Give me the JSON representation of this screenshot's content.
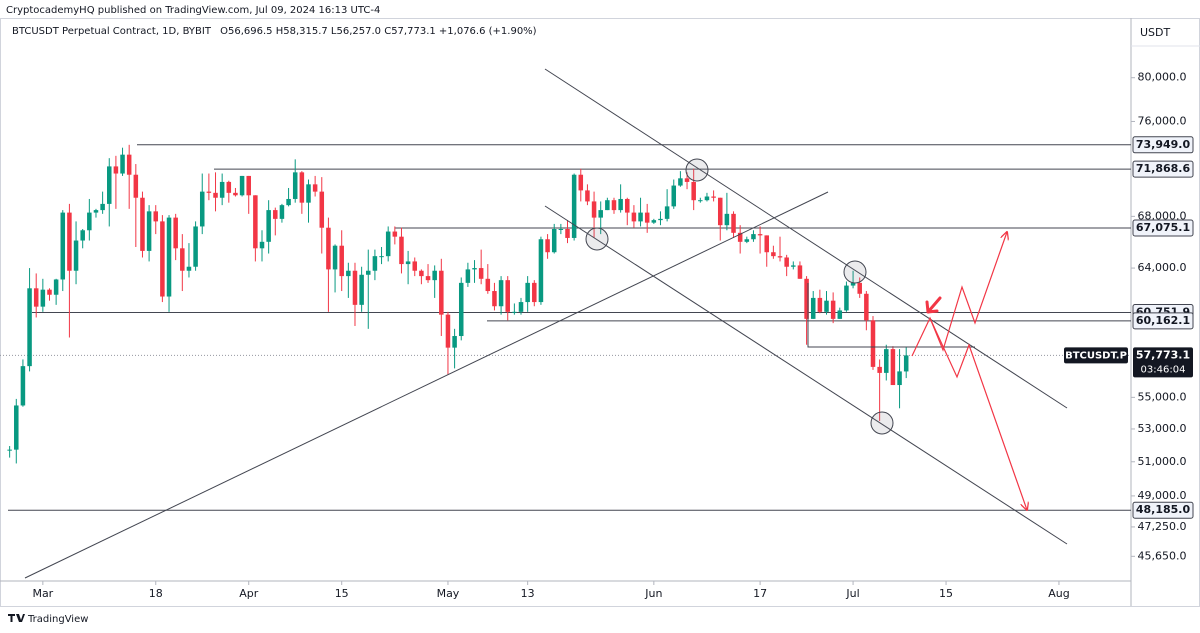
{
  "header": {
    "publisher": "CryptocademyHQ published on TradingView.com, Jul 09, 2024 16:13 UTC-4",
    "symbol_line": "BTCUSDT Perpetual Contract, 1D, BYBIT",
    "ohlc_line": "O56,696.5 H58,315.7 L56,257.0 C57,773.1 +1,076.6 (+1.90%)"
  },
  "footer": "TradingView",
  "chart_data": {
    "type": "candlestick",
    "axis_unit": "USDT",
    "log_scale": true,
    "grid": false,
    "x": [
      "2024-02-25",
      "2024-02-26",
      "2024-02-27",
      "2024-02-28",
      "2024-02-29",
      "2024-03-01",
      "2024-03-02",
      "2024-03-03",
      "2024-03-04",
      "2024-03-05",
      "2024-03-06",
      "2024-03-07",
      "2024-03-08",
      "2024-03-09",
      "2024-03-10",
      "2024-03-11",
      "2024-03-12",
      "2024-03-13",
      "2024-03-14",
      "2024-03-15",
      "2024-03-16",
      "2024-03-17",
      "2024-03-18",
      "2024-03-19",
      "2024-03-20",
      "2024-03-21",
      "2024-03-22",
      "2024-03-23",
      "2024-03-24",
      "2024-03-25",
      "2024-03-26",
      "2024-03-27",
      "2024-03-28",
      "2024-03-29",
      "2024-03-30",
      "2024-03-31",
      "2024-04-01",
      "2024-04-02",
      "2024-04-03",
      "2024-04-04",
      "2024-04-05",
      "2024-04-06",
      "2024-04-07",
      "2024-04-08",
      "2024-04-09",
      "2024-04-10",
      "2024-04-11",
      "2024-04-12",
      "2024-04-13",
      "2024-04-14",
      "2024-04-15",
      "2024-04-16",
      "2024-04-17",
      "2024-04-18",
      "2024-04-19",
      "2024-04-20",
      "2024-04-21",
      "2024-04-22",
      "2024-04-23",
      "2024-04-24",
      "2024-04-25",
      "2024-04-26",
      "2024-04-27",
      "2024-04-28",
      "2024-04-29",
      "2024-04-30",
      "2024-05-01",
      "2024-05-02",
      "2024-05-03",
      "2024-05-04",
      "2024-05-05",
      "2024-05-06",
      "2024-05-07",
      "2024-05-08",
      "2024-05-09",
      "2024-05-10",
      "2024-05-11",
      "2024-05-12",
      "2024-05-13",
      "2024-05-14",
      "2024-05-15",
      "2024-05-16",
      "2024-05-17",
      "2024-05-18",
      "2024-05-19",
      "2024-05-20",
      "2024-05-21",
      "2024-05-22",
      "2024-05-23",
      "2024-05-24",
      "2024-05-25",
      "2024-05-26",
      "2024-05-27",
      "2024-05-28",
      "2024-05-29",
      "2024-05-30",
      "2024-05-31",
      "2024-06-01",
      "2024-06-02",
      "2024-06-03",
      "2024-06-04",
      "2024-06-05",
      "2024-06-06",
      "2024-06-07",
      "2024-06-08",
      "2024-06-09",
      "2024-06-10",
      "2024-06-11",
      "2024-06-12",
      "2024-06-13",
      "2024-06-14",
      "2024-06-15",
      "2024-06-16",
      "2024-06-17",
      "2024-06-18",
      "2024-06-19",
      "2024-06-20",
      "2024-06-21",
      "2024-06-22",
      "2024-06-23",
      "2024-06-24",
      "2024-06-25",
      "2024-06-26",
      "2024-06-27",
      "2024-06-28",
      "2024-06-29",
      "2024-06-30",
      "2024-07-01",
      "2024-07-02",
      "2024-07-03",
      "2024-07-04",
      "2024-07-05",
      "2024-07-06",
      "2024-07-07",
      "2024-07-08",
      "2024-07-09"
    ],
    "series": [
      {
        "name": "BTCUSDT.P",
        "up_color": "#089981",
        "down_color": "#f23645",
        "open": [
          51700,
          51730,
          54480,
          57050,
          62500,
          61170,
          62400,
          62030,
          63150,
          68300,
          63800,
          66100,
          66900,
          68300,
          68500,
          69000,
          72100,
          71500,
          73100,
          71400,
          69500,
          65300,
          68400,
          67600,
          61900,
          67900,
          65500,
          63800,
          64100,
          67200,
          70000,
          69900,
          69500,
          70800,
          69900,
          69700,
          71300,
          69700,
          65500,
          66000,
          68500,
          67800,
          68900,
          69400,
          71600,
          69100,
          70600,
          70000,
          67100,
          63900,
          65700,
          63400,
          63800,
          61300,
          63500,
          63800,
          64900,
          64900,
          66800,
          66400,
          64300,
          64500,
          63800,
          63400,
          63100,
          63800,
          60600,
          58300,
          59100,
          62900,
          63900,
          64000,
          63200,
          62300,
          61200,
          63100,
          60800,
          60800,
          61500,
          62900,
          61500,
          66200,
          65200,
          67000,
          67000,
          66300,
          71400,
          70100,
          69200,
          67900,
          68500,
          69300,
          68500,
          69400,
          68300,
          67600,
          68300,
          67500,
          67700,
          67800,
          68800,
          70500,
          71100,
          70800,
          69300,
          69300,
          69600,
          69500,
          67300,
          68200,
          66700,
          66000,
          66200,
          66600,
          66500,
          65200,
          64900,
          64800,
          64100,
          64200,
          63200,
          60300,
          61800,
          60800,
          61600,
          60300,
          60900,
          62700,
          62900,
          62100,
          60200,
          57000,
          56600,
          58200,
          55800,
          56696.5
        ],
        "high": [
          51950,
          54900,
          57500,
          64000,
          63600,
          63200,
          62500,
          63200,
          68500,
          69000,
          67600,
          67000,
          69400,
          68600,
          70000,
          72800,
          73000,
          73700,
          73949,
          72300,
          70000,
          68900,
          68900,
          68100,
          68100,
          68200,
          66600,
          65900,
          67600,
          71500,
          71500,
          71600,
          71500,
          70900,
          70300,
          71300,
          71300,
          69700,
          66900,
          69300,
          68700,
          69000,
          70300,
          72700,
          71700,
          71000,
          71300,
          71200,
          67900,
          65800,
          66900,
          64400,
          64400,
          64100,
          65400,
          65400,
          65600,
          67200,
          67200,
          67100,
          65300,
          64800,
          63900,
          64300,
          64200,
          64700,
          60800,
          59600,
          63300,
          64400,
          64600,
          65400,
          64300,
          62900,
          63400,
          63400,
          61400,
          61800,
          63400,
          63100,
          66400,
          66600,
          67400,
          67400,
          67700,
          71500,
          71900,
          70600,
          70000,
          69200,
          69500,
          69500,
          70600,
          69500,
          68900,
          69500,
          69000,
          67800,
          68400,
          70200,
          71000,
          71700,
          71600,
          71900,
          69500,
          69900,
          70100,
          69500,
          69900,
          68400,
          67300,
          66400,
          66900,
          67200,
          66500,
          65700,
          66400,
          65000,
          64500,
          64500,
          63400,
          62300,
          62400,
          62300,
          62200,
          61100,
          63000,
          63800,
          63300,
          62300,
          60500,
          57500,
          58500,
          58400,
          58200,
          58315.7
        ],
        "low": [
          51250,
          50900,
          54400,
          56700,
          60400,
          60800,
          61600,
          61300,
          62300,
          59000,
          62800,
          65500,
          66100,
          67900,
          68200,
          67200,
          68600,
          71300,
          68600,
          65600,
          64800,
          64500,
          66600,
          61500,
          60800,
          64600,
          62300,
          63300,
          63800,
          66600,
          69300,
          68400,
          68900,
          69100,
          69600,
          69600,
          68200,
          64500,
          64500,
          65100,
          66500,
          67500,
          68800,
          69100,
          68200,
          67500,
          69600,
          65100,
          60800,
          62200,
          62300,
          61800,
          59800,
          60800,
          59600,
          63100,
          64300,
          64500,
          65800,
          63600,
          62800,
          63400,
          62800,
          62900,
          61800,
          59100,
          56500,
          56900,
          58800,
          62600,
          62900,
          62800,
          62100,
          60900,
          60600,
          60200,
          60600,
          60600,
          60800,
          61200,
          61300,
          64700,
          65100,
          66600,
          65900,
          66100,
          69200,
          68900,
          66300,
          66600,
          68500,
          68200,
          68300,
          67300,
          67100,
          67200,
          66700,
          67400,
          67300,
          67600,
          68600,
          70400,
          70200,
          68500,
          69100,
          69200,
          69200,
          66100,
          66900,
          66300,
          65100,
          65900,
          66000,
          65100,
          64100,
          64700,
          64500,
          63400,
          63900,
          63200,
          58500,
          60300,
          60700,
          60600,
          60000,
          60300,
          60800,
          62500,
          61800,
          59500,
          56800,
          53500,
          56100,
          55800,
          54300,
          56257.0
        ],
        "close": [
          51730,
          54480,
          57050,
          62500,
          61170,
          62400,
          62030,
          63150,
          68300,
          63800,
          66100,
          66900,
          68300,
          68500,
          69000,
          72100,
          71500,
          73100,
          71400,
          69500,
          65300,
          68400,
          67600,
          61900,
          67900,
          65500,
          63800,
          64100,
          67200,
          70000,
          69900,
          69500,
          70800,
          69900,
          69700,
          71300,
          69700,
          65500,
          66000,
          68500,
          67800,
          68900,
          69400,
          71600,
          69100,
          70600,
          70000,
          67100,
          63900,
          65700,
          63400,
          63800,
          61300,
          63500,
          63800,
          64900,
          64900,
          66800,
          66400,
          64300,
          64500,
          63800,
          63400,
          63100,
          63800,
          60600,
          58300,
          59100,
          62900,
          63900,
          64000,
          63200,
          62300,
          61200,
          63100,
          60800,
          60800,
          61500,
          62900,
          61500,
          66200,
          65200,
          67000,
          67000,
          66300,
          71400,
          70100,
          69200,
          67900,
          68500,
          69300,
          68500,
          69400,
          68300,
          67600,
          68300,
          67500,
          67700,
          67800,
          68800,
          70500,
          71100,
          70800,
          69300,
          69300,
          69600,
          69500,
          67300,
          68200,
          66700,
          66000,
          66200,
          66600,
          66500,
          65200,
          64900,
          64800,
          64100,
          64200,
          63200,
          60300,
          61800,
          60800,
          61600,
          60300,
          60900,
          62700,
          62900,
          62100,
          60200,
          57000,
          56600,
          58200,
          55800,
          56700,
          57773.1
        ]
      }
    ],
    "xlim": [
      "2024-02-24",
      "2024-08-12"
    ],
    "xticks": [
      {
        "value": "2024-03-01",
        "label": "Mar"
      },
      {
        "value": "2024-03-18",
        "label": "18"
      },
      {
        "value": "2024-04-01",
        "label": "Apr"
      },
      {
        "value": "2024-04-15",
        "label": "15"
      },
      {
        "value": "2024-05-01",
        "label": "May"
      },
      {
        "value": "2024-05-13",
        "label": "13"
      },
      {
        "value": "2024-06-01",
        "label": "Jun"
      },
      {
        "value": "2024-06-17",
        "label": "17"
      },
      {
        "value": "2024-07-01",
        "label": "Jul"
      },
      {
        "value": "2024-07-15",
        "label": "15"
      },
      {
        "value": "2024-08-01",
        "label": "Aug"
      }
    ],
    "ylim": [
      44400,
      85800
    ],
    "yticks": [
      {
        "value": 80000,
        "label": "80,000.0"
      },
      {
        "value": 76000,
        "label": "76,000.0"
      },
      {
        "value": 68000,
        "label": "68,000.0"
      },
      {
        "value": 64000,
        "label": "64,000.0"
      },
      {
        "value": 55000,
        "label": "55,000.0"
      },
      {
        "value": 53000,
        "label": "53,000.0"
      },
      {
        "value": 51000,
        "label": "51,000.0"
      },
      {
        "value": 49000,
        "label": "49,000.0"
      },
      {
        "value": 47250,
        "label": "47,250.0"
      },
      {
        "value": 45650,
        "label": "45,650.0"
      }
    ],
    "levels": [
      {
        "value": 73949.0,
        "label": "73,949.0"
      },
      {
        "value": 71868.6,
        "label": "71,868.6"
      },
      {
        "value": 67075.1,
        "label": "67,075.1"
      },
      {
        "value": 60751.9,
        "label": "60,751.9"
      },
      {
        "value": 60162.1,
        "label": "60,162.1"
      },
      {
        "value": 48185.0,
        "label": "48,185.0"
      }
    ],
    "last_price": {
      "value": 57773.1,
      "label": "57,773.1"
    },
    "countdown": "03:46:04"
  }
}
